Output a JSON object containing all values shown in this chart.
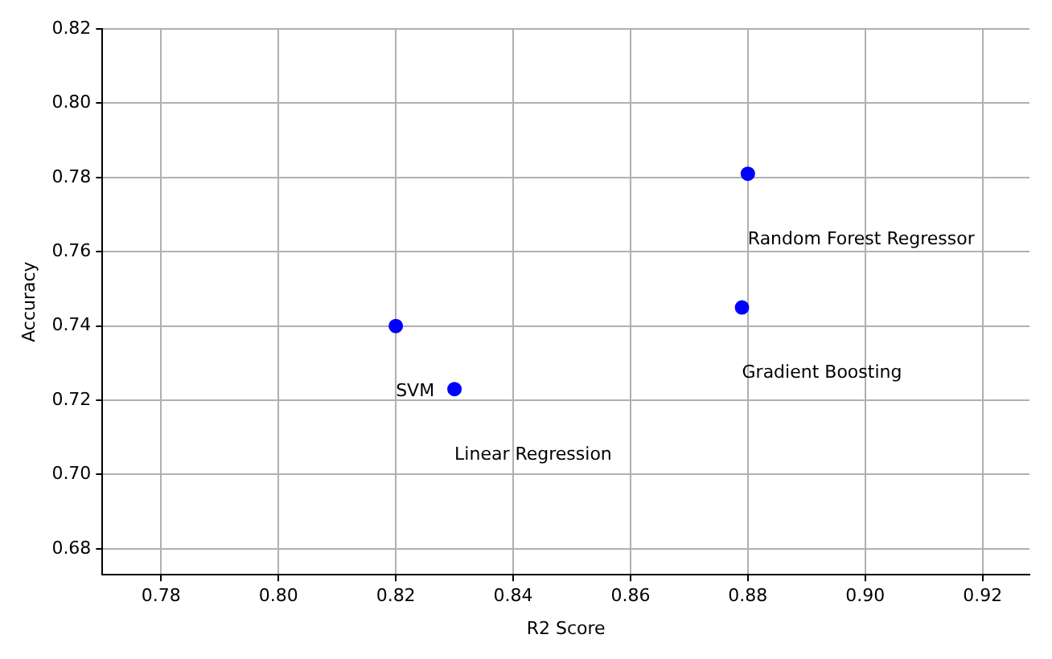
{
  "chart_data": {
    "type": "scatter",
    "xlabel": "R2 Score",
    "ylabel": "Accuracy",
    "x": [
      0.82,
      0.83,
      0.879,
      0.88
    ],
    "series": [
      {
        "color": "#0000ff",
        "values": [
          0.74,
          0.723,
          0.745,
          0.781
        ]
      }
    ],
    "annotations": [
      "SVM",
      "Linear Regression",
      "Gradient Boosting",
      "Random Forest Regressor"
    ],
    "xlim": [
      0.77,
      0.928
    ],
    "xticks": [
      {
        "value": 0.78,
        "label": "0.78"
      },
      {
        "value": 0.8,
        "label": "0.80"
      },
      {
        "value": 0.82,
        "label": "0.82"
      },
      {
        "value": 0.84,
        "label": "0.84"
      },
      {
        "value": 0.86,
        "label": "0.86"
      },
      {
        "value": 0.88,
        "label": "0.88"
      },
      {
        "value": 0.9,
        "label": "0.90"
      },
      {
        "value": 0.92,
        "label": "0.92"
      }
    ],
    "ylim": [
      0.673,
      0.82
    ],
    "yticks": [
      {
        "value": 0.68,
        "label": "0.68"
      },
      {
        "value": 0.7,
        "label": "0.70"
      },
      {
        "value": 0.72,
        "label": "0.72"
      },
      {
        "value": 0.74,
        "label": "0.74"
      },
      {
        "value": 0.76,
        "label": "0.76"
      },
      {
        "value": 0.78,
        "label": "0.78"
      },
      {
        "value": 0.8,
        "label": "0.80"
      },
      {
        "value": 0.82,
        "label": "0.82"
      }
    ],
    "grid": true,
    "legend": false,
    "marker": "circle"
  }
}
